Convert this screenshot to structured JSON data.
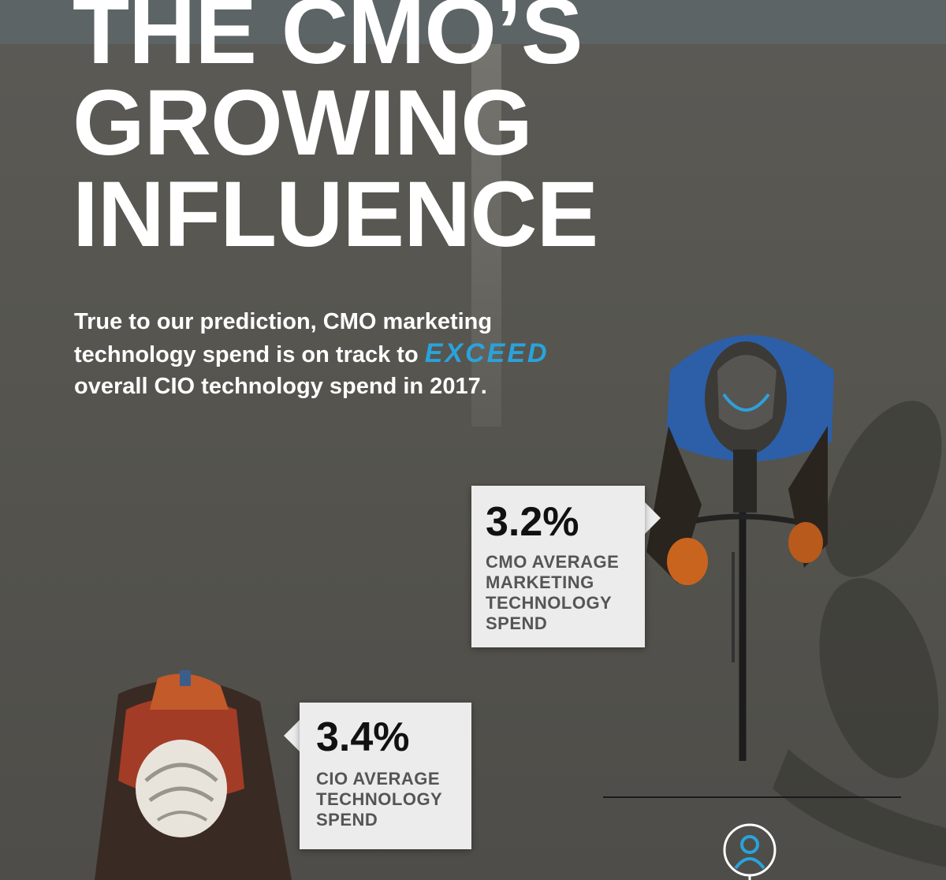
{
  "title": {
    "line1": "THE CMO’S",
    "line2": "GROWING",
    "line3": "INFLUENCE"
  },
  "intro": {
    "part1": "True to our prediction, CMO marketing technology spend is on track to ",
    "highlight": "EXCEED",
    "part2": " overall CIO technology spend in 2017."
  },
  "stats": {
    "cmo": {
      "value": "3.2%",
      "label": "CMO AVERAGE\nMARKETING\nTECHNOLOGY\nSPEND"
    },
    "cio": {
      "value": "3.4%",
      "label": "CIO AVERAGE\nTECHNOLOGY\nSPEND"
    }
  },
  "colors": {
    "accent": "#29a3dc",
    "box": "#ececec",
    "text": "#ffffff"
  },
  "icons": {
    "cyclist_right": "cyclist-blue-jersey",
    "cyclist_left": "cyclist-red-jersey",
    "person": "person-icon"
  }
}
